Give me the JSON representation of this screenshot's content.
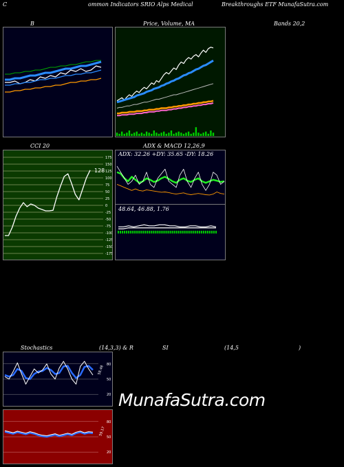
{
  "header": {
    "c": "C",
    "main": "ommon  Indicators SRIO Alps Medical",
    "right": "Breakthroughs ETF MunafaSutra.com"
  },
  "titles": {
    "bands_b": "B",
    "price_ma": "Price,  Volume,  MA",
    "bands_right": "Bands 20,2",
    "cci": "CCI 20",
    "adx_macd": "ADX  & MACD 12,26,9",
    "stoch_left": "Stochastics",
    "stoch_params": "(14,3,3) & R",
    "rsi_si": "SI",
    "rsi_params": "(14,5",
    "rsi_close": ")"
  },
  "adx_readout": "ADX: 32.26  +DY: 35.65 -DY: 18.26",
  "macd_readout": "48.64,  46.88,  1.76",
  "watermark": "MunafaSutra.com",
  "colors": {
    "blue_panel": "#00001c",
    "green_panel": "#001800",
    "cci_panel": "#0a3a00",
    "red_panel": "#8b0000",
    "ma_blue": "#2a8cff",
    "ma_orange": "#ff9900",
    "ma_pink": "#ff66cc",
    "adx_green": "#22ee22",
    "volume_green": "#00cc00"
  },
  "chart_data": [
    {
      "type": "line",
      "name": "Bollinger Bands",
      "series": [
        {
          "values": [
            5,
            5,
            6,
            4,
            5,
            7,
            6,
            9,
            8,
            10,
            9,
            12,
            11,
            14,
            13,
            15,
            13,
            14,
            17,
            16
          ]
        },
        {
          "values": [
            7,
            7,
            8,
            8,
            9,
            10,
            10,
            11,
            12,
            12,
            13,
            14,
            15,
            15,
            16,
            17,
            17,
            18,
            19,
            20
          ]
        },
        {
          "values": [
            3,
            3,
            4,
            4,
            5,
            5,
            6,
            7,
            7,
            8,
            8,
            9,
            10,
            10,
            11,
            11,
            12,
            12,
            13,
            14
          ]
        },
        {
          "values": [
            11,
            11,
            12,
            12,
            13,
            13,
            14,
            14,
            15,
            16,
            16,
            17,
            17,
            18,
            18,
            19,
            20,
            20,
            21,
            21
          ]
        },
        {
          "values": [
            -2,
            -2,
            -1,
            -1,
            0,
            0,
            1,
            1,
            2,
            2,
            3,
            3,
            4,
            5,
            5,
            6,
            6,
            7,
            7,
            8
          ]
        }
      ]
    },
    {
      "type": "line",
      "name": "Price Volume MA",
      "series": [
        {
          "values": [
            20,
            22,
            24,
            21,
            25,
            28,
            26,
            30,
            33,
            31,
            35,
            38,
            36,
            40,
            44,
            42,
            47,
            45,
            50,
            55,
            58,
            56,
            60,
            64,
            62,
            68,
            72,
            70,
            75,
            78,
            76,
            80,
            82,
            79,
            84,
            88,
            85,
            90,
            92,
            91
          ]
        },
        {
          "values": [
            18,
            19,
            20,
            21,
            22,
            23,
            24,
            25,
            27,
            28,
            29,
            30,
            32,
            33,
            34,
            36,
            37,
            38,
            40,
            41,
            43,
            44,
            46,
            47,
            49,
            50,
            52,
            54,
            55,
            57,
            58,
            60,
            62,
            63,
            65,
            67,
            68,
            70,
            72,
            74
          ]
        },
        {
          "values": [
            10,
            11,
            11,
            12,
            13,
            13,
            14,
            15,
            15,
            16,
            17,
            18,
            18,
            19,
            20,
            21,
            22,
            22,
            23,
            24,
            25,
            26,
            27,
            28,
            28,
            29,
            30,
            31,
            32,
            33,
            34,
            35,
            36,
            37,
            38,
            39,
            40,
            41,
            42,
            43
          ]
        },
        {
          "values": [
            0,
            0,
            1,
            1,
            1,
            2,
            2,
            2,
            3,
            3,
            3,
            4,
            4,
            5,
            5,
            5,
            6,
            6,
            7,
            7,
            7,
            8,
            8,
            9,
            9,
            10,
            10,
            11,
            11,
            12,
            12,
            13,
            13,
            14,
            14,
            15,
            15,
            16,
            16,
            17
          ]
        }
      ],
      "volume": [
        3,
        2,
        4,
        2,
        3,
        5,
        2,
        3,
        4,
        2,
        3,
        2,
        4,
        3,
        2,
        5,
        3,
        2,
        3,
        4,
        2,
        3,
        5,
        2,
        3,
        4,
        3,
        2,
        3,
        4,
        2,
        3,
        8,
        3,
        2,
        3,
        4,
        2,
        5,
        3
      ]
    },
    {
      "type": "line",
      "name": "CCI 20",
      "y_ticks": [
        175,
        150,
        125,
        100,
        75,
        50,
        25,
        0,
        -25,
        -50,
        -75,
        -100,
        -125,
        -150,
        -175
      ],
      "last_value_label": "128",
      "values": [
        -110,
        -110,
        -80,
        -40,
        -10,
        10,
        -5,
        5,
        0,
        -10,
        -15,
        -20,
        -20,
        -18,
        30,
        70,
        105,
        115,
        80,
        40,
        20,
        60,
        100,
        128
      ]
    },
    {
      "type": "line",
      "name": "ADX",
      "series": [
        {
          "name": "ADX",
          "values": [
            100,
            95,
            80,
            70,
            85,
            75,
            65,
            70,
            80,
            75,
            68,
            72,
            80,
            85,
            78,
            70,
            65,
            75,
            80,
            72,
            68,
            75,
            80,
            70,
            65,
            70,
            75,
            72,
            68,
            70
          ]
        },
        {
          "name": "+DY",
          "values": [
            120,
            100,
            80,
            60,
            70,
            90,
            60,
            70,
            100,
            60,
            50,
            80,
            95,
            110,
            70,
            60,
            50,
            90,
            110,
            70,
            50,
            80,
            100,
            60,
            40,
            60,
            100,
            90,
            60,
            70
          ]
        },
        {
          "name": "-DY",
          "values": [
            60,
            55,
            50,
            45,
            40,
            45,
            40,
            38,
            42,
            40,
            38,
            36,
            34,
            35,
            33,
            30,
            28,
            30,
            32,
            28,
            26,
            28,
            30,
            28,
            26,
            25,
            28,
            35,
            30,
            28
          ]
        }
      ]
    },
    {
      "type": "bar",
      "name": "MACD",
      "series": [
        {
          "name": "MACD",
          "values": [
            48,
            48,
            49,
            48,
            49,
            50,
            49,
            49,
            50,
            50,
            49,
            49,
            48,
            48,
            49,
            49,
            48,
            48,
            49,
            48
          ]
        },
        {
          "name": "Signal",
          "values": [
            46,
            46,
            47,
            47,
            47,
            47,
            47,
            47,
            47,
            47,
            47,
            47,
            47,
            47,
            47,
            47,
            47,
            47,
            47,
            47
          ]
        }
      ]
    },
    {
      "type": "line",
      "name": "Stochastics",
      "y_ticks": [
        80,
        50,
        20
      ],
      "last_value_label": "58.48",
      "series": [
        {
          "name": "%K",
          "values": [
            55,
            50,
            65,
            82,
            60,
            40,
            55,
            70,
            62,
            68,
            80,
            60,
            50,
            72,
            85,
            70,
            50,
            40,
            75,
            85,
            70,
            58
          ]
        },
        {
          "name": "%D",
          "values": [
            58,
            55,
            58,
            70,
            66,
            52,
            50,
            60,
            65,
            66,
            72,
            68,
            60,
            62,
            75,
            76,
            62,
            52,
            58,
            74,
            76,
            68
          ]
        }
      ]
    },
    {
      "type": "line",
      "name": "RSI",
      "y_ticks": [
        80,
        50,
        20
      ],
      "last_value_label": "59.17",
      "values": [
        62,
        60,
        58,
        61,
        59,
        57,
        60,
        58,
        55,
        53,
        52,
        54,
        56,
        53,
        55,
        57,
        55,
        59,
        61,
        58,
        60,
        59
      ]
    }
  ]
}
